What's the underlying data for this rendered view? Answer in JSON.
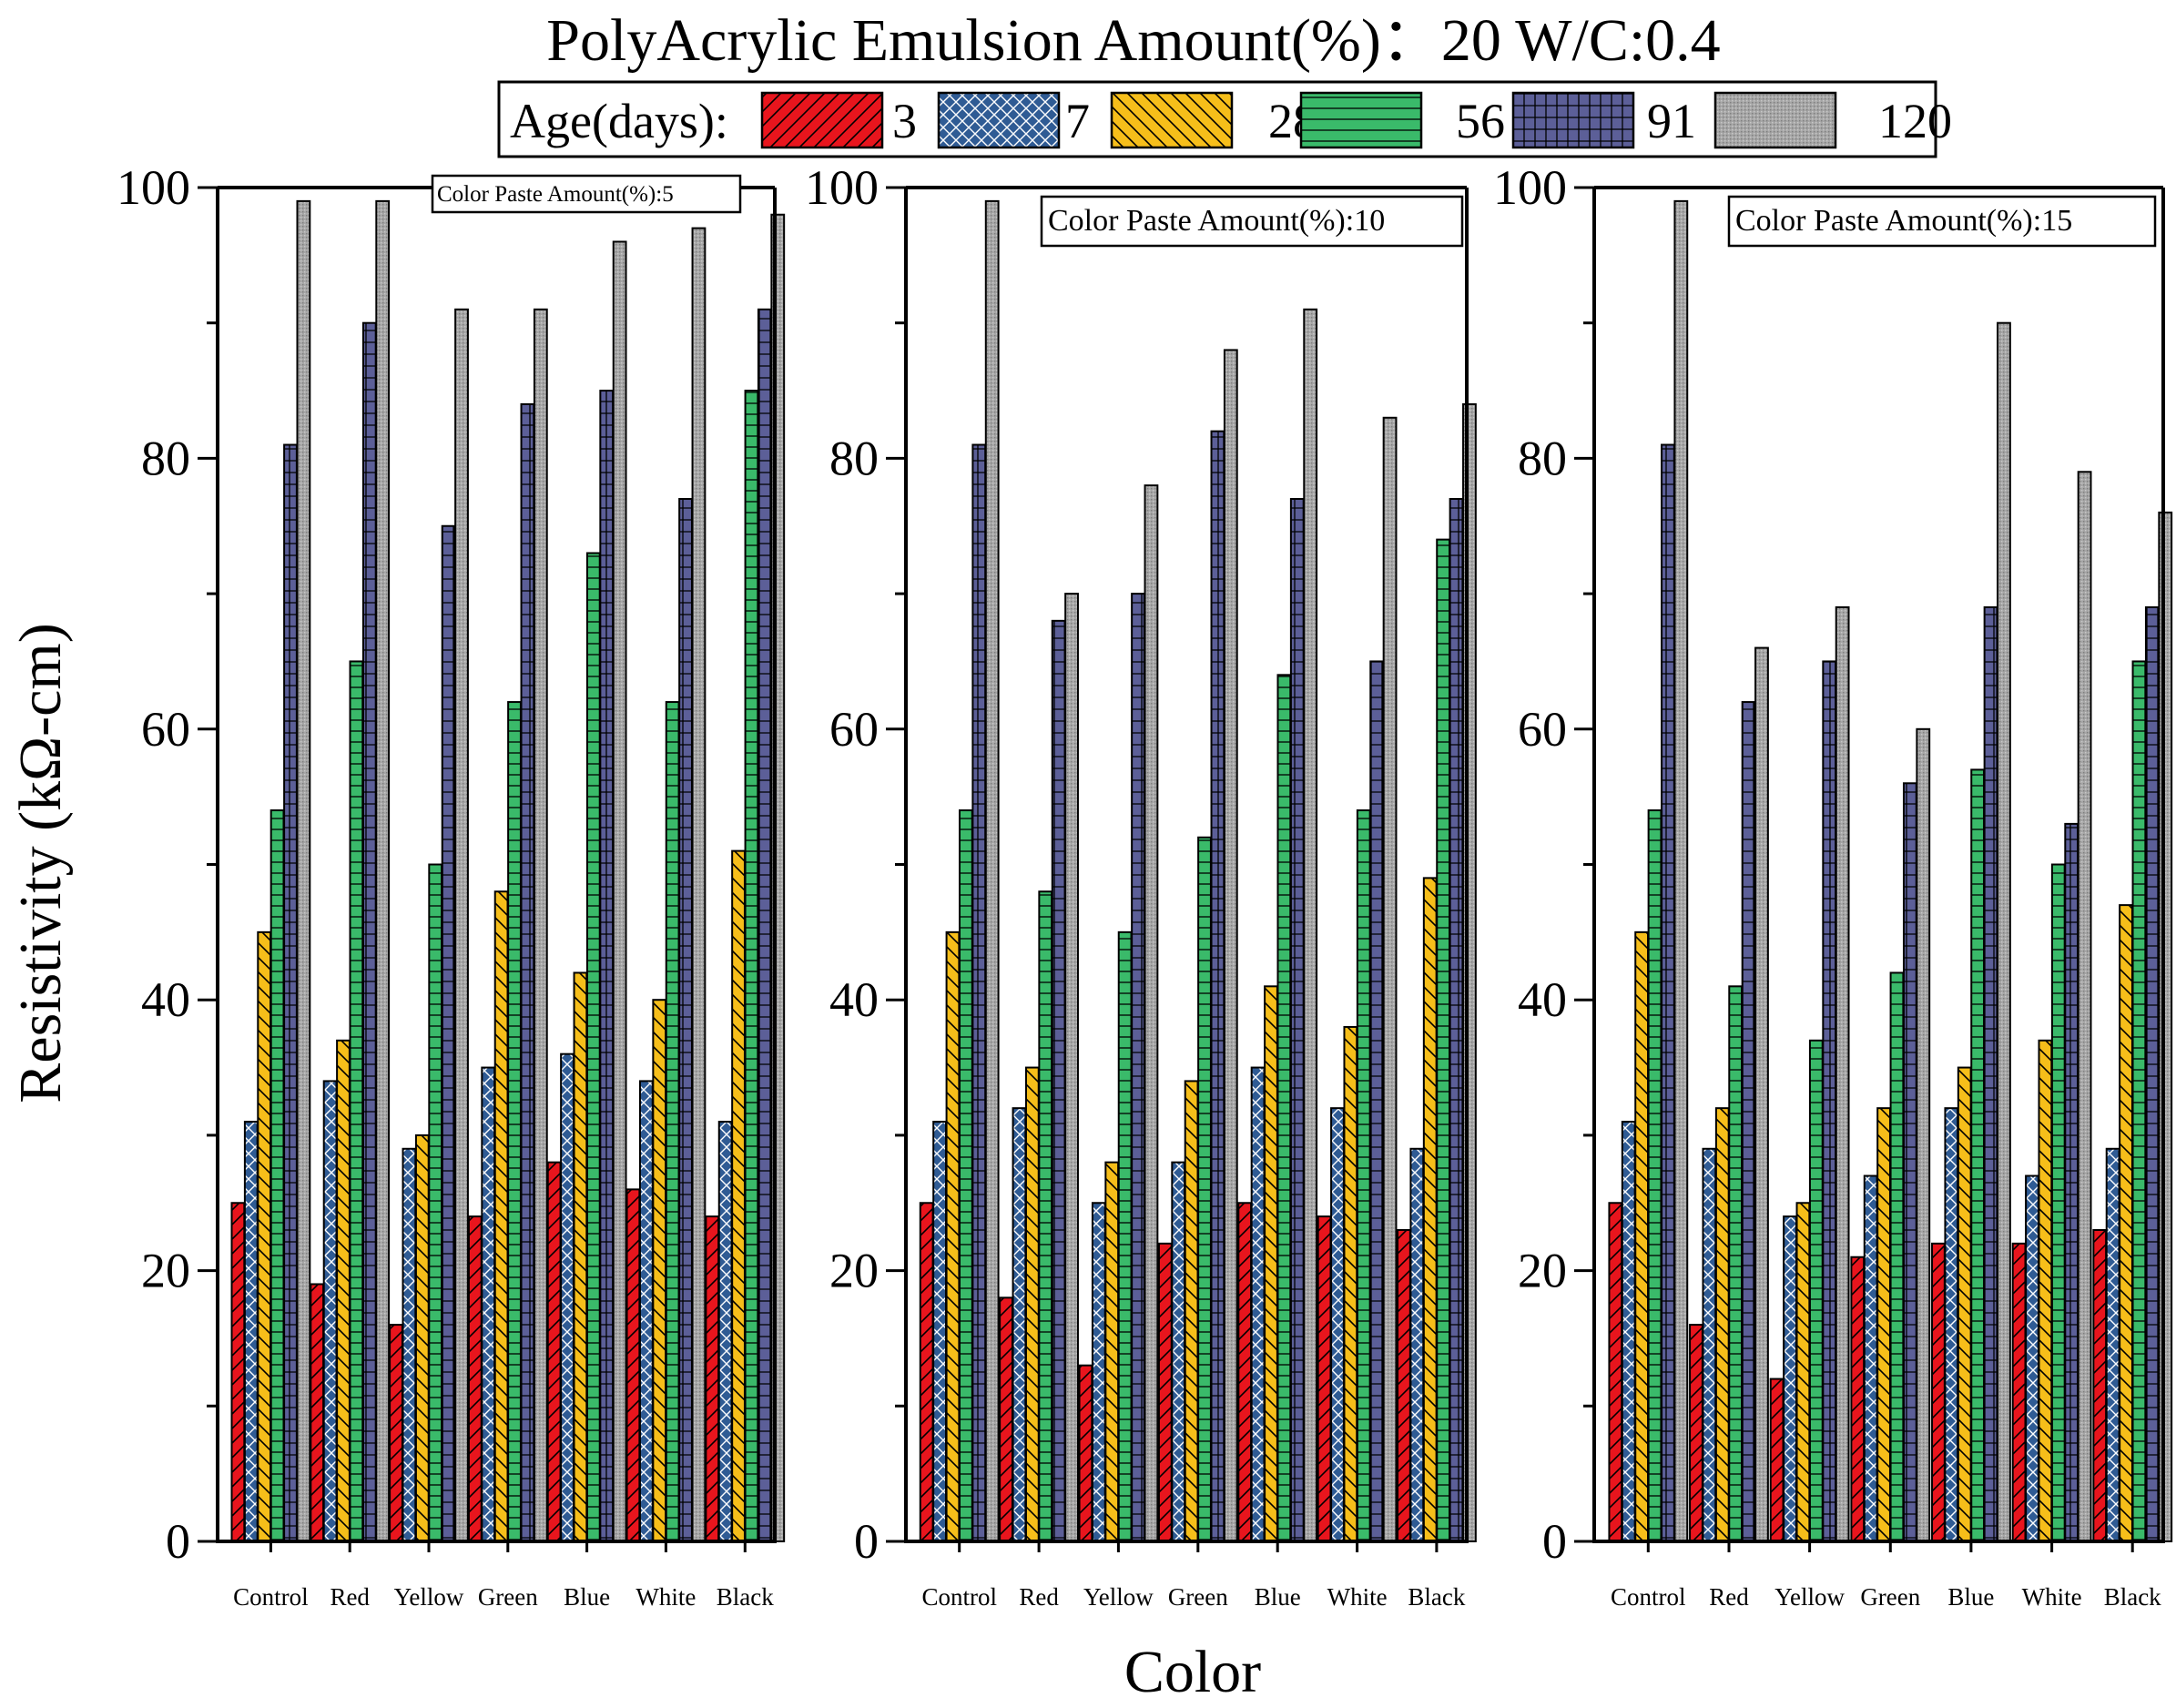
{
  "colors": {
    "d3": "#e8151d",
    "d7": "#2f5b94",
    "d28": "#f6be1a",
    "d56": "#3aba6a",
    "d91": "#5c5f98",
    "d120": "#a6a6a6"
  },
  "chart_data": {
    "type": "bar",
    "title": "PolyAcrylic Emulsion Amount(%)：20  W/C:0.4",
    "xlabel": "Color",
    "ylabel": "Resistivity (kΩ-cm)",
    "ylim": [
      0,
      100
    ],
    "yticks": [
      "0",
      "20",
      "40",
      "60",
      "80",
      "100"
    ],
    "legend": {
      "title": "Age(days):",
      "placement": "top-center",
      "entries": [
        "3",
        "7",
        "28",
        "56",
        "91",
        "120"
      ]
    },
    "categories": [
      "Control",
      "Red",
      "Yellow",
      "Green",
      "Blue",
      "White",
      "Black"
    ],
    "panels": [
      {
        "annotation": "Color Paste Amount(%):5",
        "series": [
          {
            "name": "3",
            "values": [
              25,
              19,
              16,
              24,
              28,
              26,
              24
            ]
          },
          {
            "name": "7",
            "values": [
              31,
              34,
              29,
              35,
              36,
              34,
              31
            ]
          },
          {
            "name": "28",
            "values": [
              45,
              37,
              30,
              48,
              42,
              40,
              51
            ]
          },
          {
            "name": "56",
            "values": [
              54,
              65,
              50,
              62,
              73,
              62,
              85
            ]
          },
          {
            "name": "91",
            "values": [
              81,
              90,
              75,
              84,
              85,
              77,
              91
            ]
          },
          {
            "name": "120",
            "values": [
              99,
              99,
              91,
              91,
              96,
              97,
              98
            ]
          }
        ]
      },
      {
        "annotation": "Color Paste Amount(%):10",
        "series": [
          {
            "name": "3",
            "values": [
              25,
              18,
              13,
              22,
              25,
              24,
              23
            ]
          },
          {
            "name": "7",
            "values": [
              31,
              32,
              25,
              28,
              35,
              32,
              29
            ]
          },
          {
            "name": "28",
            "values": [
              45,
              35,
              28,
              34,
              41,
              38,
              49
            ]
          },
          {
            "name": "56",
            "values": [
              54,
              48,
              45,
              52,
              64,
              54,
              74
            ]
          },
          {
            "name": "91",
            "values": [
              81,
              68,
              70,
              82,
              77,
              65,
              77
            ]
          },
          {
            "name": "120",
            "values": [
              99,
              70,
              78,
              88,
              91,
              83,
              84
            ]
          }
        ]
      },
      {
        "annotation": "Color Paste Amount(%):15",
        "series": [
          {
            "name": "3",
            "values": [
              25,
              16,
              12,
              21,
              22,
              22,
              23
            ]
          },
          {
            "name": "7",
            "values": [
              31,
              29,
              24,
              27,
              32,
              27,
              29
            ]
          },
          {
            "name": "28",
            "values": [
              45,
              32,
              25,
              32,
              35,
              37,
              47
            ]
          },
          {
            "name": "56",
            "values": [
              54,
              41,
              37,
              42,
              57,
              50,
              65
            ]
          },
          {
            "name": "91",
            "values": [
              81,
              62,
              65,
              56,
              69,
              53,
              69
            ]
          },
          {
            "name": "120",
            "values": [
              99,
              66,
              69,
              60,
              90,
              79,
              76
            ]
          }
        ]
      }
    ]
  }
}
